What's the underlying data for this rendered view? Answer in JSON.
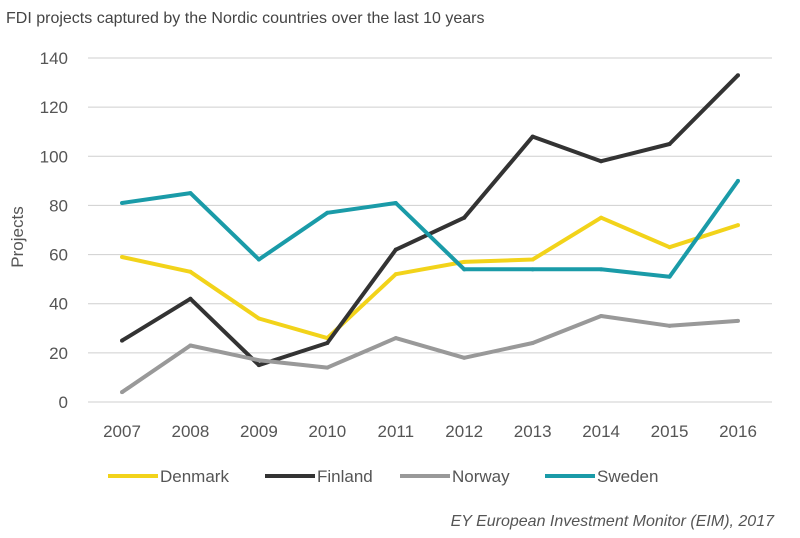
{
  "chart_data": {
    "type": "line",
    "title": "FDI projects captured by the Nordic countries over the last 10 years",
    "xlabel": "",
    "ylabel": "Projects",
    "categories": [
      "2007",
      "2008",
      "2009",
      "2010",
      "2011",
      "2012",
      "2013",
      "2014",
      "2015",
      "2016"
    ],
    "ylim": [
      0,
      140
    ],
    "yticks": [
      0,
      20,
      40,
      60,
      80,
      100,
      120,
      140
    ],
    "grid": true,
    "legend_position": "bottom",
    "series": [
      {
        "name": "Denmark",
        "color": "#f2d31a",
        "values": [
          59,
          53,
          34,
          26,
          52,
          57,
          58,
          75,
          63,
          72
        ]
      },
      {
        "name": "Finland",
        "color": "#333333",
        "values": [
          25,
          42,
          15,
          24,
          62,
          75,
          108,
          98,
          105,
          133
        ]
      },
      {
        "name": "Norway",
        "color": "#999999",
        "values": [
          4,
          23,
          17,
          14,
          26,
          18,
          24,
          35,
          31,
          33
        ]
      },
      {
        "name": "Sweden",
        "color": "#1a9ba8",
        "values": [
          81,
          85,
          58,
          77,
          81,
          54,
          54,
          54,
          51,
          90
        ]
      }
    ],
    "source": "EY European Investment Monitor (EIM), 2017"
  }
}
